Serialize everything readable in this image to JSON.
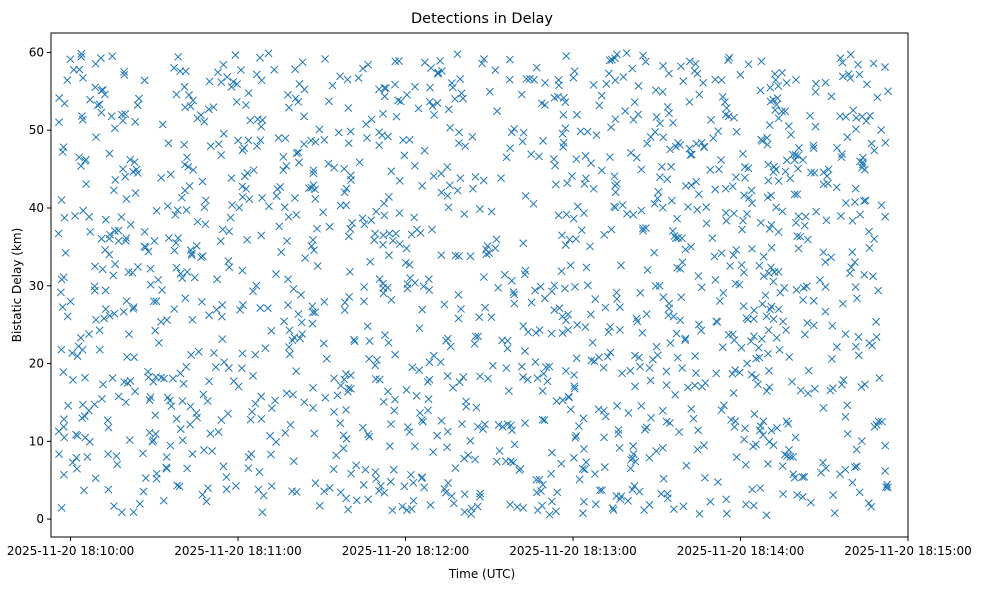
{
  "chart_data": {
    "type": "scatter",
    "title": "Detections in Delay",
    "xlabel": "Time (UTC)",
    "ylabel": "Bistatic Delay (km)",
    "xlim": [
      "2025-11-20 18:09:53",
      "2025-11-20 18:15:00"
    ],
    "ylim": [
      -2.3,
      62.5
    ],
    "xticks": [
      {
        "value": "2025-11-20 18:10:00",
        "label": "2025-11-20 18:10:00"
      },
      {
        "value": "2025-11-20 18:11:00",
        "label": "2025-11-20 18:11:00"
      },
      {
        "value": "2025-11-20 18:12:00",
        "label": "2025-11-20 18:12:00"
      },
      {
        "value": "2025-11-20 18:13:00",
        "label": "2025-11-20 18:13:00"
      },
      {
        "value": "2025-11-20 18:14:00",
        "label": "2025-11-20 18:14:00"
      },
      {
        "value": "2025-11-20 18:15:00",
        "label": "2025-11-20 18:15:00"
      }
    ],
    "yticks": [
      0,
      10,
      20,
      30,
      40,
      50,
      60
    ],
    "grid": false,
    "marker": "x",
    "color": "#1f77b4",
    "x_range": [
      "2025-11-20 18:09:55",
      "2025-11-20 18:14:53"
    ],
    "y_range": [
      0.5,
      60
    ],
    "point_count": 1500
  }
}
